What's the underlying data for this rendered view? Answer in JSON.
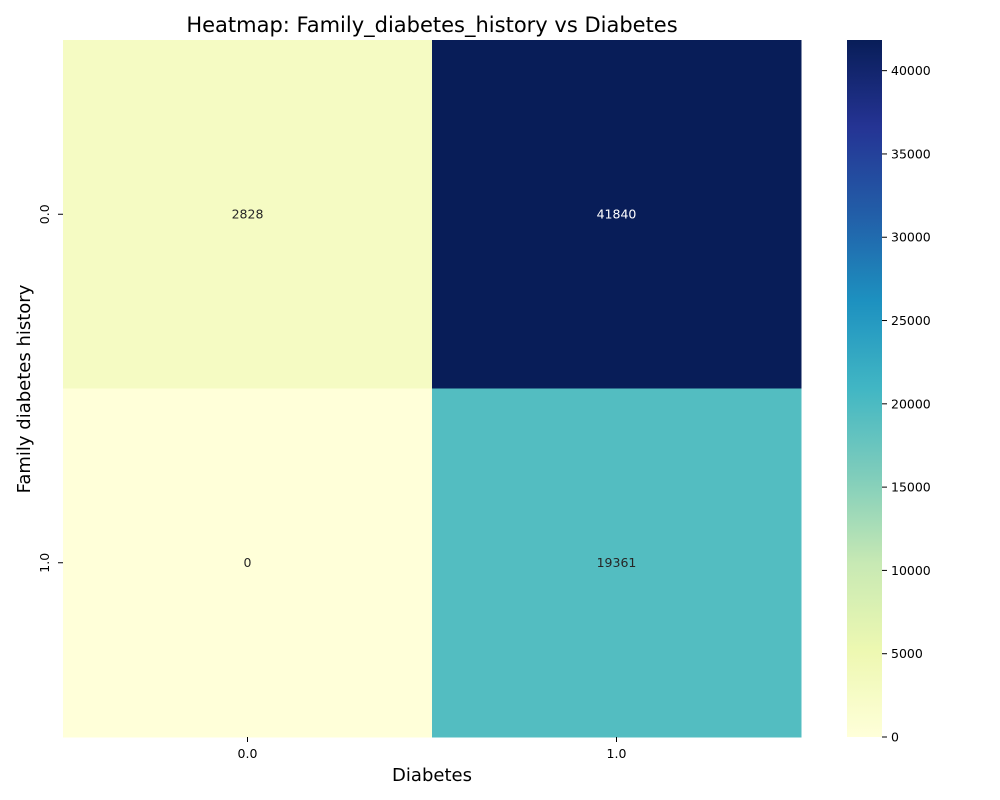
{
  "chart_data": {
    "type": "heatmap",
    "title": "Heatmap: Family_diabetes_history vs Diabetes",
    "xlabel": "Diabetes",
    "ylabel": "Family diabetes history",
    "x_categories": [
      "0.0",
      "1.0"
    ],
    "y_categories": [
      "0.0",
      "1.0"
    ],
    "values": [
      [
        2828,
        41840
      ],
      [
        0,
        19361
      ]
    ],
    "cell_labels": [
      [
        "2828",
        "41840"
      ],
      [
        "0",
        "19361"
      ]
    ],
    "colormap": "YlGnBu",
    "vmin": 0,
    "vmax": 41840,
    "colorbar": {
      "ticks": [
        0,
        5000,
        10000,
        15000,
        20000,
        25000,
        30000,
        35000,
        40000
      ],
      "tick_labels": [
        "0",
        "5000",
        "10000",
        "15000",
        "20000",
        "25000",
        "30000",
        "35000",
        "40000"
      ],
      "position": "right"
    },
    "grid": false
  }
}
